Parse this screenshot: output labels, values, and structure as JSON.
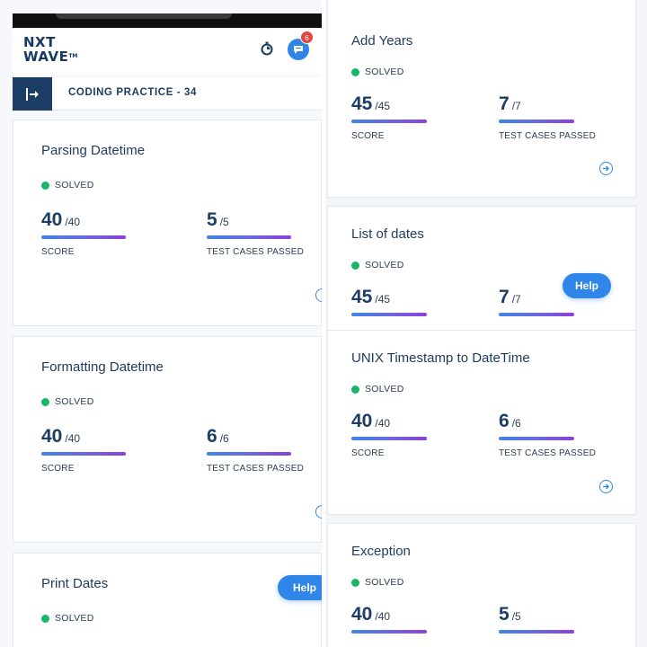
{
  "header": {
    "logo_line1": "NXT",
    "logo_line2": "WAVE",
    "logo_tm": "TM",
    "notification_count": "6"
  },
  "practice": {
    "title": "CODING PRACTICE - 34"
  },
  "help_label": "Help",
  "left_cards": [
    {
      "title": "Parsing Datetime",
      "status": "SOLVED",
      "score": "40",
      "score_total": "/40",
      "score_label": "SCORE",
      "tests": "5",
      "tests_total": "/5",
      "tests_label": "TEST CASES PASSED"
    },
    {
      "title": "Formatting Datetime",
      "status": "SOLVED",
      "score": "40",
      "score_total": "/40",
      "score_label": "SCORE",
      "tests": "6",
      "tests_total": "/6",
      "tests_label": "TEST CASES PASSED"
    },
    {
      "title": "Print Dates",
      "status": "SOLVED"
    }
  ],
  "right_cards": [
    {
      "title": "Add Years",
      "status": "SOLVED",
      "score": "45",
      "score_total": "/45",
      "score_label": "SCORE",
      "tests": "7",
      "tests_total": "/7",
      "tests_label": "TEST CASES PASSED"
    },
    {
      "title": "List of dates",
      "status": "SOLVED",
      "score": "45",
      "score_total": "/45",
      "tests": "7",
      "tests_total": "/7"
    },
    {
      "title": "UNIX Timestamp to DateTime",
      "status": "SOLVED",
      "score": "40",
      "score_total": "/40",
      "score_label": "SCORE",
      "tests": "6",
      "tests_total": "/6",
      "tests_label": "TEST CASES PASSED"
    },
    {
      "title": "Exception",
      "status": "SOLVED",
      "score": "40",
      "score_total": "/40",
      "tests": "5",
      "tests_total": "/5"
    }
  ],
  "colors": {
    "accent": "#2f86e8",
    "navy": "#1b3d66",
    "solved": "#18b66b",
    "badge": "#e2463e"
  }
}
